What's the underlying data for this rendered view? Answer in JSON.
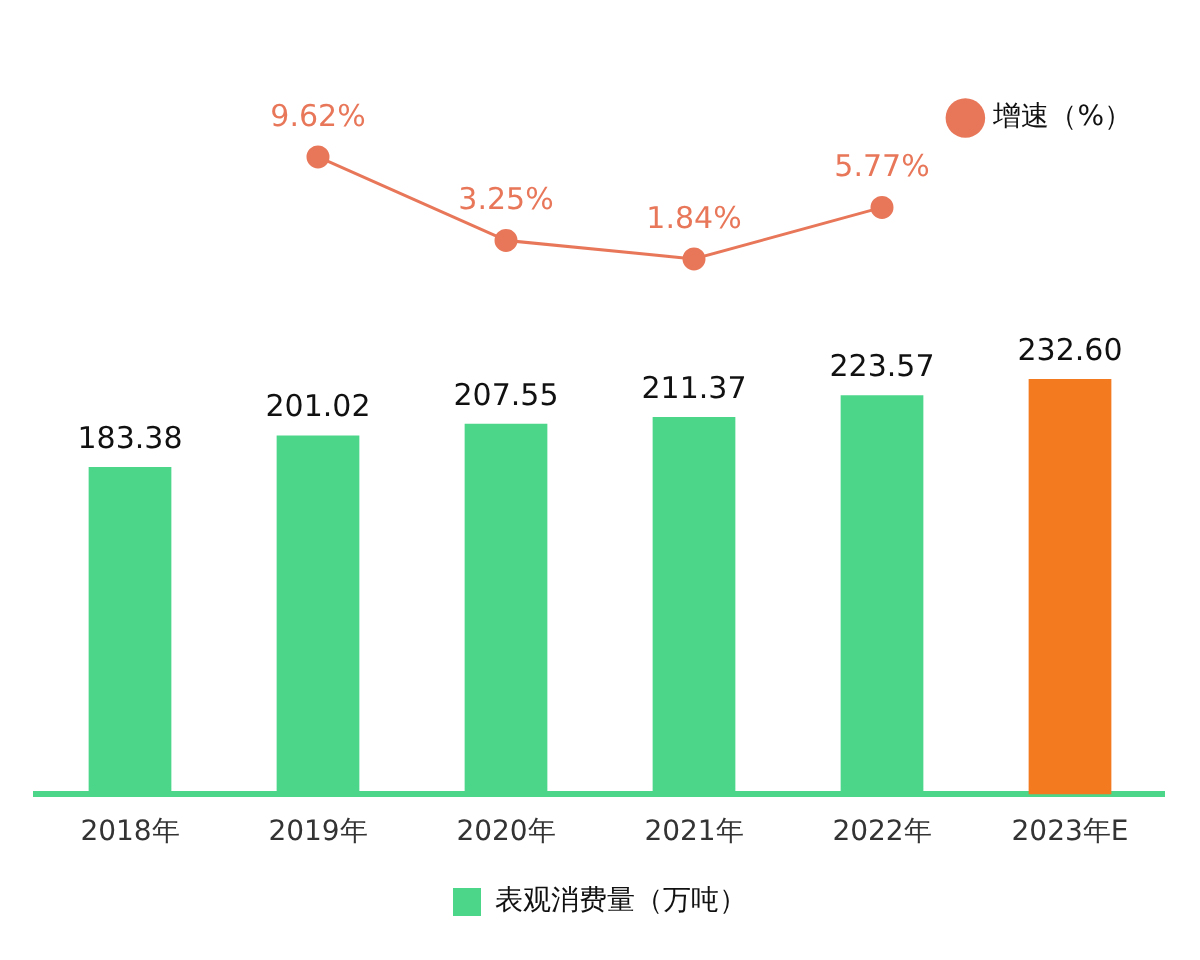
{
  "chart_data": [
    {
      "type": "line",
      "categories": [
        null,
        null,
        null,
        null,
        null,
        null
      ],
      "tick_labels": false,
      "series": [
        {
          "name": "增速（%）",
          "color": "#e8775a",
          "values": [
            null,
            9.62,
            3.25,
            1.84,
            5.77,
            null
          ],
          "value_labels": [
            null,
            "9.62%",
            "3.25%",
            "1.84%",
            "5.77%",
            null
          ]
        }
      ],
      "legend": "top right",
      "marker": "circle",
      "grid": false
    },
    {
      "type": "bar",
      "categories": [
        "2018年",
        "2019年",
        "2020年",
        "2021年",
        "2022年",
        "2023年E"
      ],
      "series": [
        {
          "name": "表观消费量（万吨）",
          "color": "#4cd68a",
          "colors": [
            "#4cd68a",
            "#4cd68a",
            "#4cd68a",
            "#4cd68a",
            "#4cd68a",
            "#f47a1f"
          ],
          "values": [
            183.38,
            201.02,
            207.55,
            211.37,
            223.57,
            232.6
          ],
          "value_labels": [
            "183.38",
            "201.02",
            "207.55",
            "211.37",
            "223.57",
            "232.60"
          ]
        }
      ],
      "legend": "bottom",
      "grid": false
    }
  ]
}
